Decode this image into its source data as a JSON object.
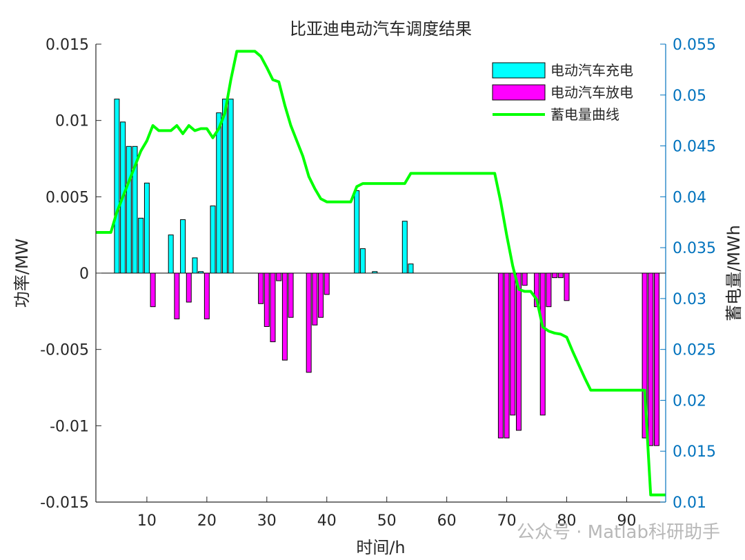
{
  "chart_data": {
    "type": "bar",
    "title": "比亚迪电动汽车调度结果",
    "xlabel": "时间/h",
    "ylabel_left": "功率/MW",
    "ylabel_right": "蓄电量/MWh",
    "xlim": [
      1.5,
      96.5
    ],
    "ylim_left": [
      -0.015,
      0.015
    ],
    "ylim_right": [
      0.01,
      0.055
    ],
    "xticks": [
      "10",
      "20",
      "30",
      "40",
      "50",
      "60",
      "70",
      "80",
      "90"
    ],
    "yticks_left": [
      "-0.015",
      "-0.01",
      "-0.005",
      "0",
      "0.005",
      "0.01",
      "0.015"
    ],
    "yticks_right": [
      "0.01",
      "0.015",
      "0.02",
      "0.025",
      "0.03",
      "0.035",
      "0.04",
      "0.045",
      "0.05",
      "0.055"
    ],
    "legend_position": "top-right",
    "colors": {
      "charge": "#00ffff",
      "discharge": "#ff00ff",
      "soc": "#00ff00",
      "right_axis": "#0072bd",
      "axis": "#262626"
    },
    "series": [
      {
        "name": "电动汽车充电",
        "kind": "bar",
        "x": [
          5,
          6,
          7,
          8,
          9,
          10,
          14,
          16,
          18,
          19,
          21,
          22,
          23,
          24,
          45,
          46,
          48,
          53,
          54
        ],
        "values": [
          0.0114,
          0.0099,
          0.0083,
          0.0083,
          0.0036,
          0.0059,
          0.0025,
          0.0035,
          0.001,
          0.0001,
          0.0044,
          0.0105,
          0.0114,
          0.0114,
          0.0054,
          0.0016,
          0.0001,
          0.0034,
          0.0006
        ]
      },
      {
        "name": "电动汽车放电",
        "kind": "bar",
        "x": [
          11,
          15,
          17,
          20,
          29,
          30,
          31,
          32,
          33,
          34,
          37,
          38,
          39,
          40,
          69,
          70,
          71,
          72,
          73,
          75,
          76,
          77,
          78,
          79,
          80,
          93,
          94,
          95
        ],
        "values": [
          -0.0022,
          -0.003,
          -0.0019,
          -0.003,
          -0.002,
          -0.0035,
          -0.0045,
          -0.0005,
          -0.0057,
          -0.0029,
          -0.0065,
          -0.0034,
          -0.0029,
          -0.0014,
          -0.0108,
          -0.0108,
          -0.0093,
          -0.0103,
          -0.0008,
          -0.0022,
          -0.0093,
          -0.0022,
          -0.0003,
          -0.0003,
          -0.0018,
          -0.0108,
          -0.0113,
          -0.0113
        ]
      },
      {
        "name": "蓄电量曲线",
        "kind": "line",
        "axis": "right",
        "x": [
          1.5,
          4,
          5,
          6,
          7,
          8,
          9,
          10,
          11,
          12,
          13,
          14,
          15,
          16,
          17,
          18,
          19,
          20,
          21,
          22,
          23,
          24,
          25,
          26,
          27,
          28,
          29,
          30,
          31,
          32,
          33,
          34,
          35,
          36,
          37,
          38,
          39,
          40,
          41,
          42,
          43,
          44,
          45,
          46,
          47,
          48,
          49,
          50,
          51,
          52,
          53,
          54,
          68,
          69,
          70,
          71,
          72,
          73,
          74,
          75,
          76,
          77,
          78,
          79,
          80,
          81,
          82,
          83,
          84,
          92,
          93,
          94,
          95,
          96.5
        ],
        "values": [
          0.0365,
          0.0365,
          0.0385,
          0.04,
          0.0415,
          0.043,
          0.0445,
          0.0455,
          0.047,
          0.0465,
          0.0465,
          0.0465,
          0.047,
          0.0462,
          0.047,
          0.0465,
          0.0467,
          0.0467,
          0.0458,
          0.0467,
          0.0482,
          0.0515,
          0.0543,
          0.0543,
          0.0543,
          0.0543,
          0.0538,
          0.0527,
          0.0515,
          0.0513,
          0.049,
          0.047,
          0.0455,
          0.044,
          0.042,
          0.0408,
          0.0398,
          0.0395,
          0.0395,
          0.0395,
          0.0395,
          0.0395,
          0.041,
          0.0413,
          0.0413,
          0.0413,
          0.0413,
          0.0413,
          0.0413,
          0.0413,
          0.0413,
          0.0423,
          0.0423,
          0.0395,
          0.0362,
          0.0332,
          0.0309,
          0.0307,
          0.0307,
          0.0299,
          0.0272,
          0.0268,
          0.0266,
          0.0265,
          0.0262,
          0.0248,
          0.0235,
          0.0222,
          0.021,
          0.021,
          0.021,
          0.0107,
          0.0107,
          0.0107
        ]
      }
    ],
    "watermark": "公众号 · Matlab科研助手"
  }
}
